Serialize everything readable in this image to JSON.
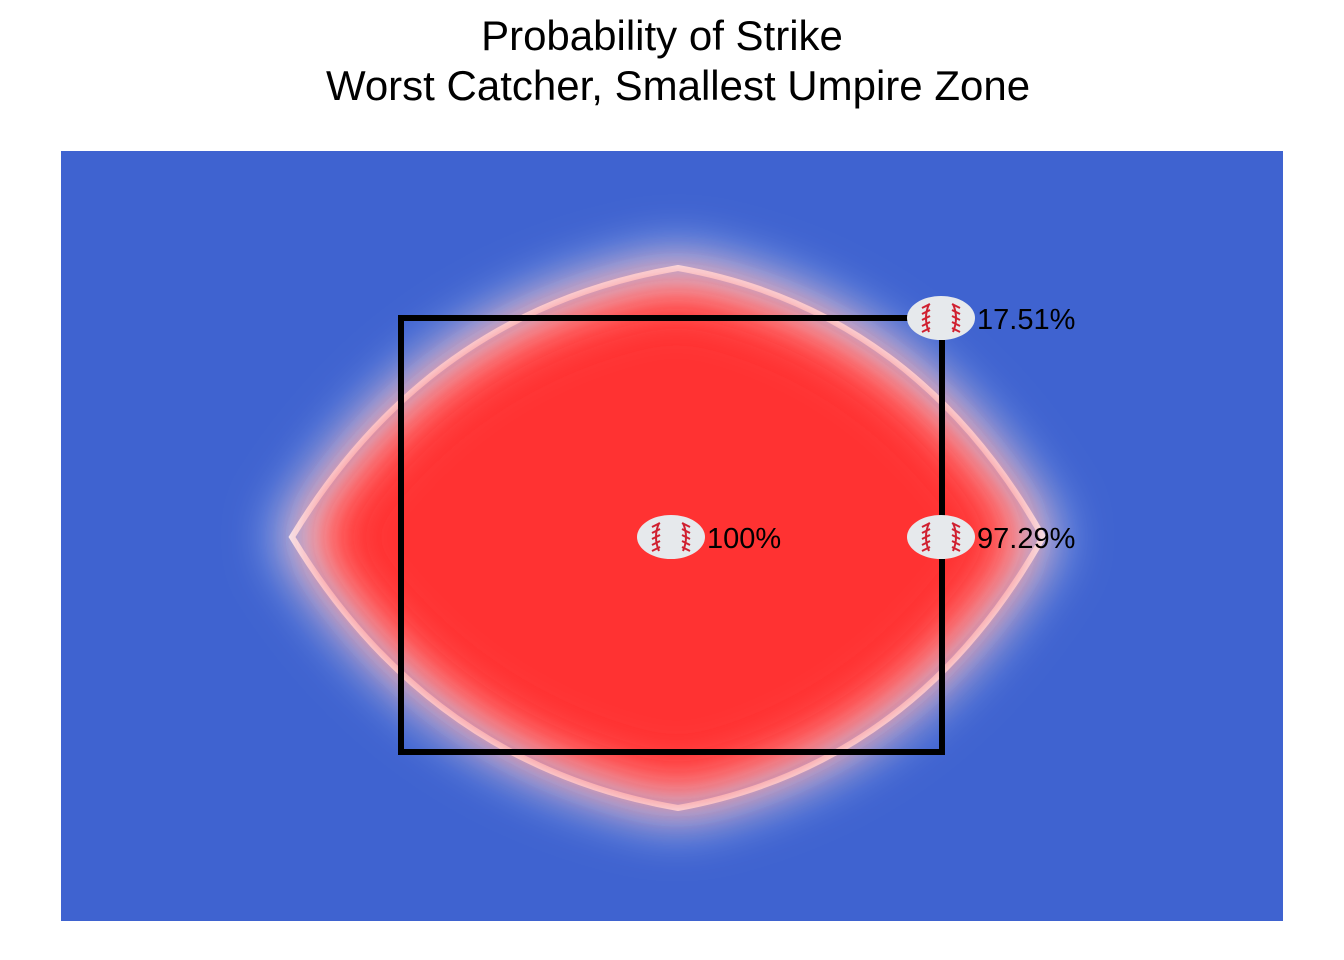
{
  "chart_data": {
    "type": "heatmap",
    "title": "Probability of Strike",
    "subtitle": "Worst Catcher, Smallest Umpire Zone",
    "colors": {
      "low": "#3f63d0",
      "mid": "#ffffff",
      "high": "#ff3030",
      "zone": "#000000",
      "ball": "#e6e9ec",
      "stitch": "#d02030"
    },
    "points": [
      {
        "label": "17.51%",
        "value": 0.1751,
        "position": "top-right corner of zone"
      },
      {
        "label": "100%",
        "value": 1.0,
        "position": "center of zone"
      },
      {
        "label": "97.29%",
        "value": 0.9729,
        "position": "right edge of zone"
      }
    ],
    "icon": "baseball-icon"
  }
}
